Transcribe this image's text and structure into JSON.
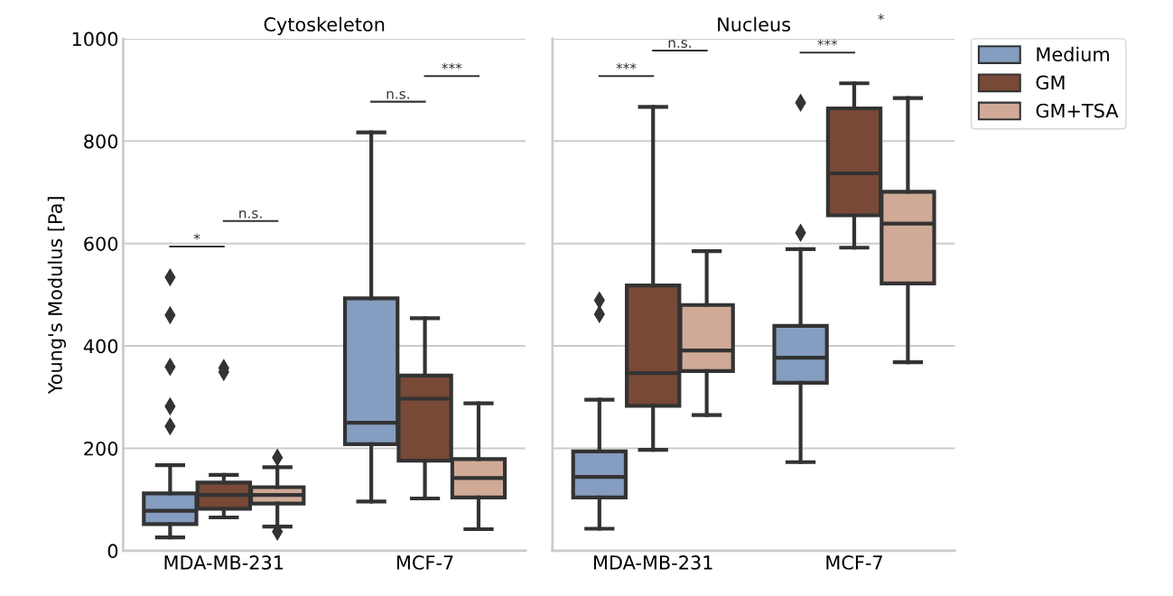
{
  "chart_data": [
    {
      "type": "box",
      "title": "Cytoskeleton",
      "ylabel": "Young's Modulus [Pa]",
      "categories": [
        "MDA-MB-231",
        "MCF-7"
      ],
      "ylim": [
        0,
        1000
      ],
      "yticks": [
        0,
        200,
        400,
        600,
        800,
        1000
      ],
      "grid": "y",
      "legend": "right",
      "series": [
        {
          "name": "Medium",
          "color": "#859dc0",
          "boxes": [
            {
              "low": 26,
              "q1": 52,
              "median": 78,
              "q3": 112,
              "high": 167,
              "outliers": [
                534,
                460,
                359,
                282,
                243
              ]
            },
            {
              "low": 96,
              "q1": 208,
              "median": 250,
              "q3": 493,
              "high": 817
            }
          ]
        },
        {
          "name": "GM",
          "color": "#774936",
          "boxes": [
            {
              "low": 65,
              "q1": 82,
              "median": 109,
              "q3": 133,
              "high": 148,
              "outliers": [
                357,
                349
              ]
            },
            {
              "low": 102,
              "q1": 176,
              "median": 297,
              "q3": 342,
              "high": 454
            }
          ]
        },
        {
          "name": "GM+TSA",
          "color": "#d0aa97",
          "boxes": [
            {
              "low": 47,
              "q1": 92,
              "median": 109,
              "q3": 124,
              "high": 163,
              "outliers": [
                182,
                37
              ]
            },
            {
              "low": 42,
              "q1": 104,
              "median": 142,
              "q3": 179,
              "high": 288
            }
          ]
        }
      ],
      "annotations": [
        "*",
        "n.s.",
        "n.s.",
        "***"
      ]
    },
    {
      "type": "box",
      "title": "Nucleus",
      "categories": [
        "MDA-MB-231",
        "MCF-7"
      ],
      "ylim": [
        0,
        1000
      ],
      "yticks": [
        0,
        200,
        400,
        600,
        800,
        1000
      ],
      "grid": "y",
      "legend": "right",
      "tick_labels": "x",
      "series": [
        {
          "name": "Medium",
          "color": "#859dc0",
          "boxes": [
            {
              "low": 43,
              "q1": 104,
              "median": 144,
              "q3": 194,
              "high": 295,
              "outliers": [
                489,
                462
              ]
            },
            {
              "low": 173,
              "q1": 328,
              "median": 377,
              "q3": 439,
              "high": 589,
              "outliers": [
                621,
                875
              ]
            }
          ]
        },
        {
          "name": "GM",
          "color": "#774936",
          "boxes": [
            {
              "low": 197,
              "q1": 283,
              "median": 347,
              "q3": 518,
              "high": 867
            },
            {
              "low": 592,
              "q1": 655,
              "median": 737,
              "q3": 864,
              "high": 913
            }
          ]
        },
        {
          "name": "GM+TSA",
          "color": "#d0aa97",
          "boxes": [
            {
              "low": 265,
              "q1": 351,
              "median": 391,
              "q3": 480,
              "high": 585
            },
            {
              "low": 368,
              "q1": 522,
              "median": 639,
              "q3": 701,
              "high": 884
            }
          ]
        }
      ],
      "annotations": [
        "***",
        "n.s.",
        "***",
        "*"
      ]
    }
  ]
}
